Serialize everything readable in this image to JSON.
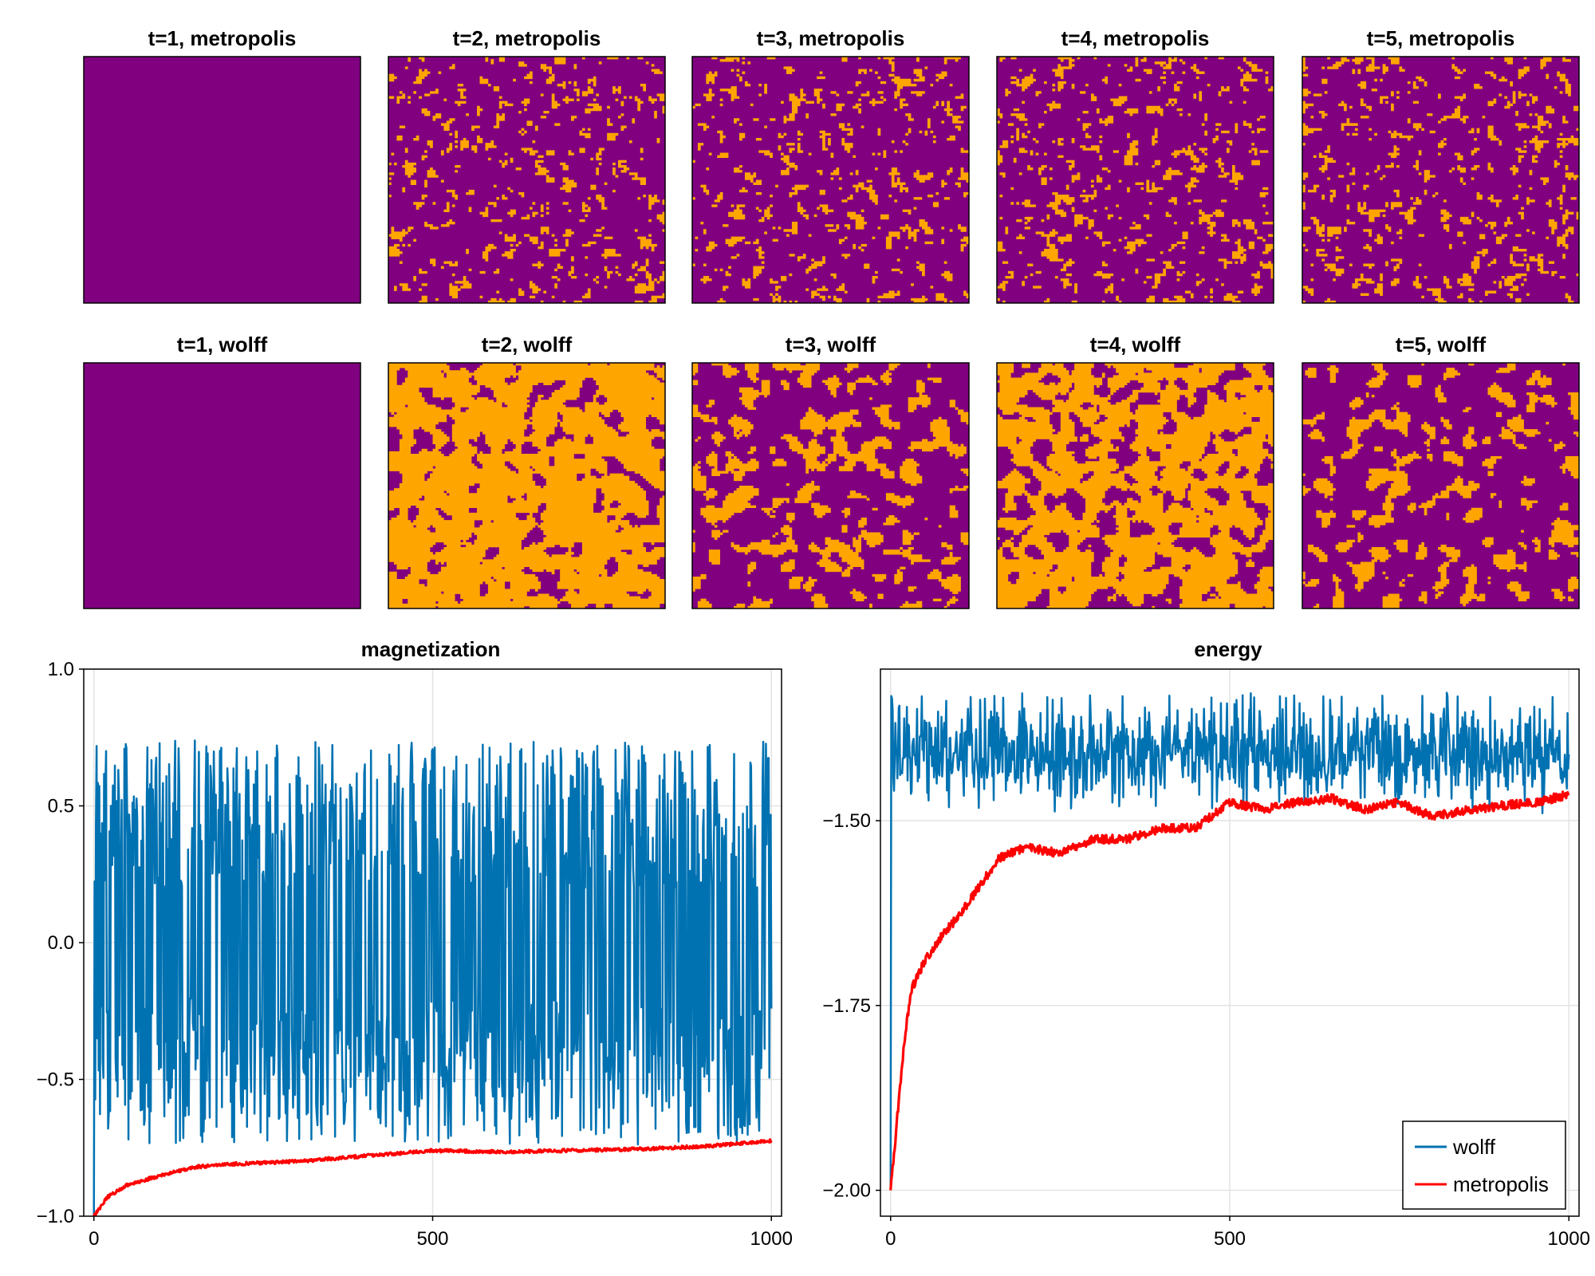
{
  "colors": {
    "spin_down": "#800080",
    "spin_up": "#ffa500",
    "wolff": "#0072b2",
    "metropolis": "#ff0000",
    "grid": "#e3e3e3"
  },
  "lattice_panels": {
    "metropolis": [
      {
        "title": "t=1, metropolis",
        "up_fraction": 0.0,
        "cluster_scale": 0
      },
      {
        "title": "t=2, metropolis",
        "up_fraction": 0.12,
        "cluster_scale": 1
      },
      {
        "title": "t=3, metropolis",
        "up_fraction": 0.12,
        "cluster_scale": 1
      },
      {
        "title": "t=4, metropolis",
        "up_fraction": 0.13,
        "cluster_scale": 1
      },
      {
        "title": "t=5, metropolis",
        "up_fraction": 0.13,
        "cluster_scale": 1
      }
    ],
    "wolff": [
      {
        "title": "t=1, wolff",
        "up_fraction": 0.0,
        "cluster_scale": 0
      },
      {
        "title": "t=2, wolff",
        "up_fraction": 0.82,
        "cluster_scale": 3
      },
      {
        "title": "t=3, wolff",
        "up_fraction": 0.25,
        "cluster_scale": 3
      },
      {
        "title": "t=4, wolff",
        "up_fraction": 0.7,
        "cluster_scale": 3
      },
      {
        "title": "t=5, wolff",
        "up_fraction": 0.2,
        "cluster_scale": 3
      }
    ]
  },
  "chart_data": [
    {
      "type": "line",
      "title": "magnetization",
      "xlabel": "",
      "ylabel": "",
      "xlim": [
        0,
        1000
      ],
      "ylim": [
        -1.0,
        1.0
      ],
      "x_ticks": [
        0,
        500,
        1000
      ],
      "x_tick_labels": [
        "0",
        "500",
        "1000"
      ],
      "y_ticks": [
        -1.0,
        -0.5,
        0.0,
        0.5,
        1.0
      ],
      "y_tick_labels": [
        "−1.0",
        "−0.5",
        "0.0",
        "0.5",
        "1.0"
      ],
      "grid": true,
      "series": [
        {
          "name": "wolff",
          "kind": "bimodal_noise",
          "start": -1.0,
          "range": [
            -0.74,
            0.74
          ],
          "n": 1000
        },
        {
          "name": "metropolis",
          "kind": "relaxation",
          "points": [
            [
              0,
              -1.0
            ],
            [
              20,
              -0.93
            ],
            [
              50,
              -0.885
            ],
            [
              100,
              -0.85
            ],
            [
              150,
              -0.82
            ],
            [
              200,
              -0.81
            ],
            [
              300,
              -0.8
            ],
            [
              400,
              -0.78
            ],
            [
              500,
              -0.76
            ],
            [
              600,
              -0.765
            ],
            [
              700,
              -0.76
            ],
            [
              800,
              -0.755
            ],
            [
              900,
              -0.745
            ],
            [
              1000,
              -0.725
            ]
          ]
        }
      ]
    },
    {
      "type": "line",
      "title": "energy",
      "xlabel": "",
      "ylabel": "",
      "xlim": [
        0,
        1000
      ],
      "ylim": [
        -2.035,
        -1.295
      ],
      "x_ticks": [
        0,
        500,
        1000
      ],
      "x_tick_labels": [
        "0",
        "500",
        "1000"
      ],
      "y_ticks": [
        -2.0,
        -1.75,
        -1.5
      ],
      "y_tick_labels": [
        "−2.00",
        "−1.75",
        "−1.50"
      ],
      "grid": true,
      "legend": {
        "position": "bottom-right",
        "entries": [
          "wolff",
          "metropolis"
        ]
      },
      "series": [
        {
          "name": "wolff",
          "kind": "noise",
          "start": -2.0,
          "mean": -1.41,
          "range": [
            -1.515,
            -1.335
          ],
          "n": 1000
        },
        {
          "name": "metropolis",
          "kind": "relaxation",
          "points": [
            [
              0,
              -2.0
            ],
            [
              10,
              -1.9
            ],
            [
              20,
              -1.8
            ],
            [
              30,
              -1.73
            ],
            [
              50,
              -1.69
            ],
            [
              80,
              -1.65
            ],
            [
              100,
              -1.63
            ],
            [
              130,
              -1.59
            ],
            [
              160,
              -1.55
            ],
            [
              200,
              -1.535
            ],
            [
              250,
              -1.545
            ],
            [
              300,
              -1.525
            ],
            [
              350,
              -1.525
            ],
            [
              400,
              -1.51
            ],
            [
              450,
              -1.51
            ],
            [
              500,
              -1.475
            ],
            [
              550,
              -1.485
            ],
            [
              600,
              -1.475
            ],
            [
              650,
              -1.47
            ],
            [
              700,
              -1.485
            ],
            [
              750,
              -1.475
            ],
            [
              800,
              -1.495
            ],
            [
              850,
              -1.485
            ],
            [
              900,
              -1.48
            ],
            [
              950,
              -1.475
            ],
            [
              1000,
              -1.465
            ]
          ]
        }
      ]
    }
  ]
}
